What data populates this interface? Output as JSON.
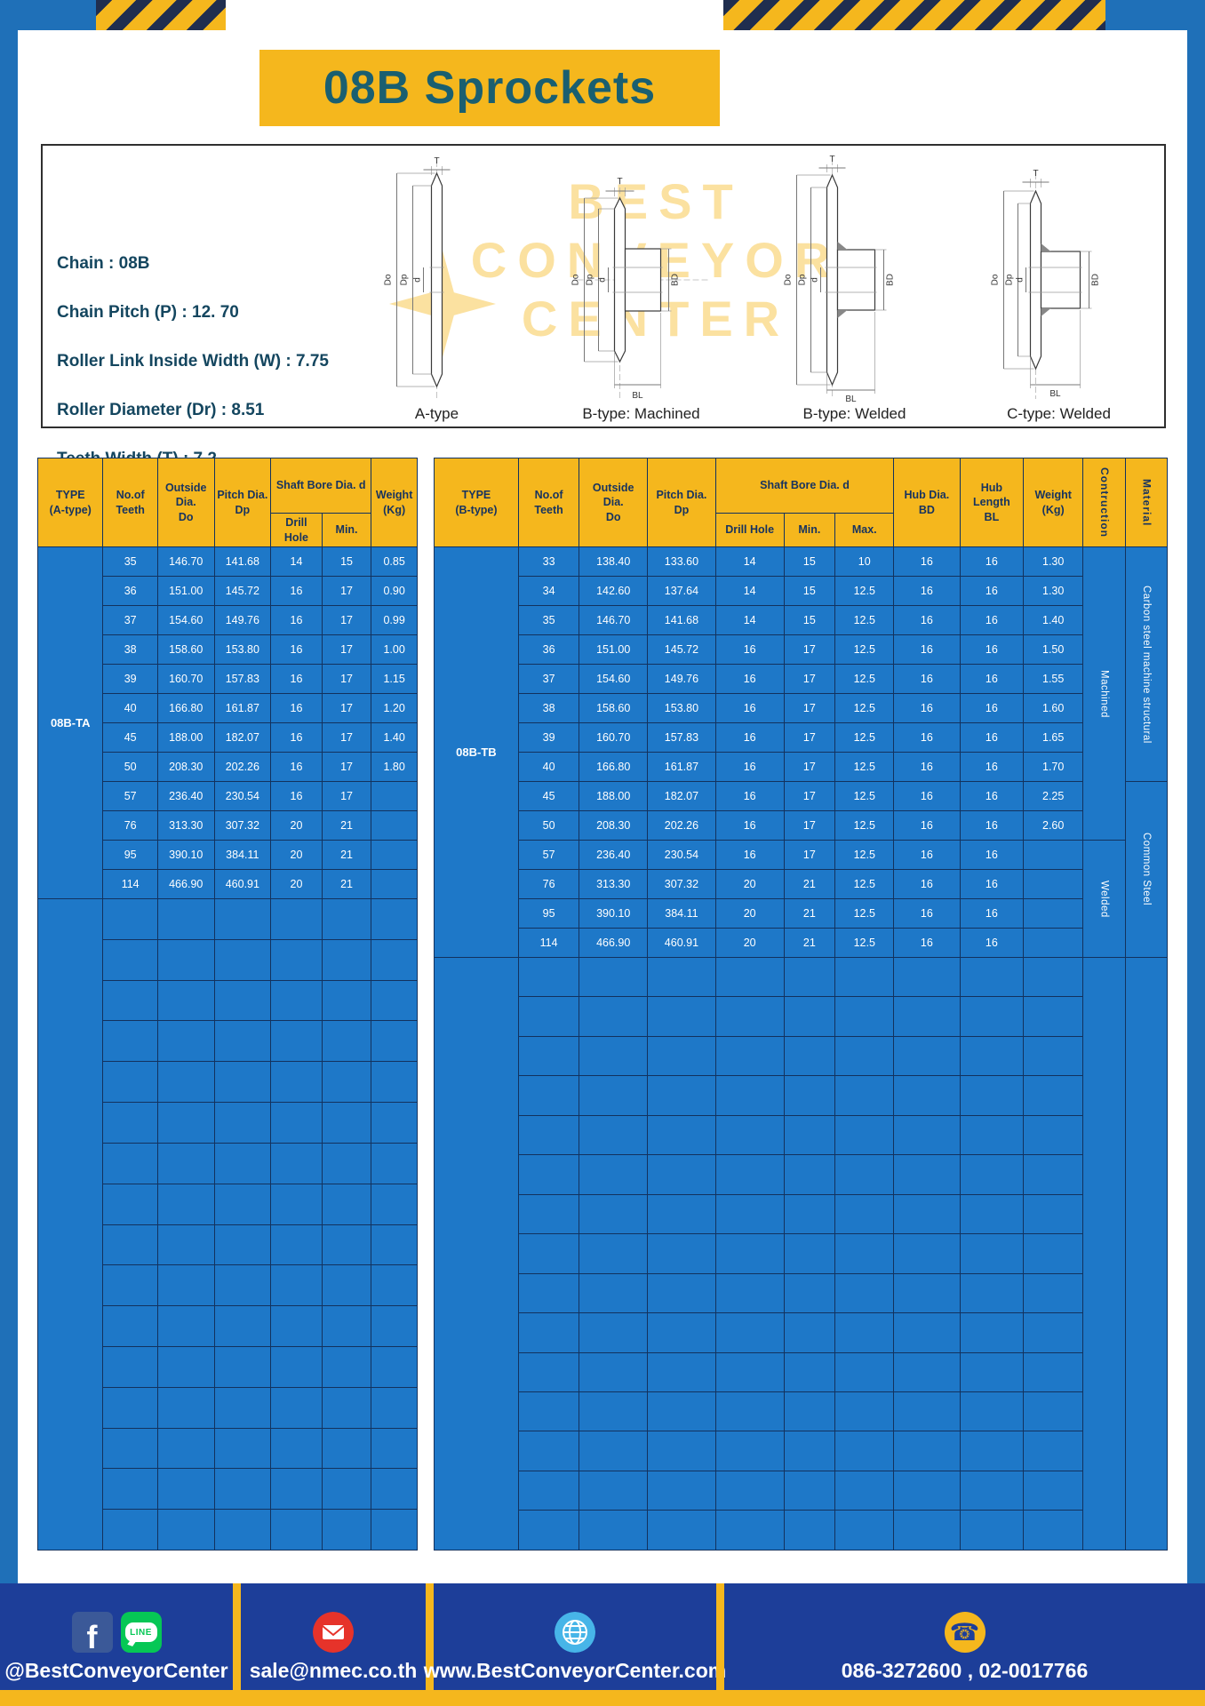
{
  "title": "08B Sprockets",
  "colors": {
    "frame_blue": "#1f70b8",
    "cell_blue": "#1e78c8",
    "accent_yellow": "#f5b71d",
    "footer_blue": "#1d3e99",
    "title_teal": "#1a5f70"
  },
  "specs": {
    "lines": [
      "Chain : 08B",
      "Chain Pitch (P) : 12. 70",
      "Roller Link Inside Width (W) : 7.75",
      "Roller Diameter (Dr) : 8.51",
      "Teeth Width (T) : 7.2"
    ]
  },
  "drawings": {
    "dims": {
      "T": "T",
      "Do": "Do",
      "Dp": "Dp",
      "d": "d",
      "BD": "BD",
      "BL": "BL"
    },
    "captions": [
      "A-type",
      "B-type: Machined",
      "B-type: Welded",
      "C-type: Welded"
    ],
    "watermark": [
      "BEST",
      "CONVEYOR",
      "CENTER"
    ]
  },
  "table_a": {
    "headers": {
      "type": "TYPE\n(A-type)",
      "teeth": "No.of\nTeeth",
      "outside": "Outside\nDia.\nDo",
      "pitch": "Pitch Dia.\nDp",
      "shaft_bore": "Shaft Bore Dia. d",
      "drill": "Drill Hole",
      "min": "Min.",
      "weight": "Weight\n(Kg)"
    },
    "type_value": "08B-TA",
    "rows": [
      [
        "35",
        "146.70",
        "141.68",
        "14",
        "15",
        "0.85"
      ],
      [
        "36",
        "151.00",
        "145.72",
        "16",
        "17",
        "0.90"
      ],
      [
        "37",
        "154.60",
        "149.76",
        "16",
        "17",
        "0.99"
      ],
      [
        "38",
        "158.60",
        "153.80",
        "16",
        "17",
        "1.00"
      ],
      [
        "39",
        "160.70",
        "157.83",
        "16",
        "17",
        "1.15"
      ],
      [
        "40",
        "166.80",
        "161.87",
        "16",
        "17",
        "1.20"
      ],
      [
        "45",
        "188.00",
        "182.07",
        "16",
        "17",
        "1.40"
      ],
      [
        "50",
        "208.30",
        "202.26",
        "16",
        "17",
        "1.80"
      ],
      [
        "57",
        "236.40",
        "230.54",
        "16",
        "17",
        ""
      ],
      [
        "76",
        "313.30",
        "307.32",
        "20",
        "21",
        ""
      ],
      [
        "95",
        "390.10",
        "384.11",
        "20",
        "21",
        ""
      ],
      [
        "114",
        "466.90",
        "460.91",
        "20",
        "21",
        ""
      ]
    ]
  },
  "table_b": {
    "headers": {
      "type": "TYPE\n(B-type)",
      "teeth": "No.of\nTeeth",
      "outside": "Outside\nDia.\nDo",
      "pitch": "Pitch Dia.\nDp",
      "shaft_bore": "Shaft Bore Dia. d",
      "drill": "Drill Hole",
      "min": "Min.",
      "max": "Max.",
      "hub_dia": "Hub Dia.\nBD",
      "hub_len": "Hub\nLength\nBL",
      "weight": "Weight\n(Kg)",
      "construction": "Contruction",
      "material": "Material"
    },
    "type_value": "08B-TB",
    "rows": [
      [
        "33",
        "138.40",
        "133.60",
        "14",
        "15",
        "10",
        "16",
        "16",
        "1.30"
      ],
      [
        "34",
        "142.60",
        "137.64",
        "14",
        "15",
        "12.5",
        "16",
        "16",
        "1.30"
      ],
      [
        "35",
        "146.70",
        "141.68",
        "14",
        "15",
        "12.5",
        "16",
        "16",
        "1.40"
      ],
      [
        "36",
        "151.00",
        "145.72",
        "16",
        "17",
        "12.5",
        "16",
        "16",
        "1.50"
      ],
      [
        "37",
        "154.60",
        "149.76",
        "16",
        "17",
        "12.5",
        "16",
        "16",
        "1.55"
      ],
      [
        "38",
        "158.60",
        "153.80",
        "16",
        "17",
        "12.5",
        "16",
        "16",
        "1.60"
      ],
      [
        "39",
        "160.70",
        "157.83",
        "16",
        "17",
        "12.5",
        "16",
        "16",
        "1.65"
      ],
      [
        "40",
        "166.80",
        "161.87",
        "16",
        "17",
        "12.5",
        "16",
        "16",
        "1.70"
      ],
      [
        "45",
        "188.00",
        "182.07",
        "16",
        "17",
        "12.5",
        "16",
        "16",
        "2.25"
      ],
      [
        "50",
        "208.30",
        "202.26",
        "16",
        "17",
        "12.5",
        "16",
        "16",
        "2.60"
      ],
      [
        "57",
        "236.40",
        "230.54",
        "16",
        "17",
        "12.5",
        "16",
        "16",
        ""
      ],
      [
        "76",
        "313.30",
        "307.32",
        "20",
        "21",
        "12.5",
        "16",
        "16",
        ""
      ],
      [
        "95",
        "390.10",
        "384.11",
        "20",
        "21",
        "12.5",
        "16",
        "16",
        ""
      ],
      [
        "114",
        "466.90",
        "460.91",
        "20",
        "21",
        "12.5",
        "16",
        "16",
        ""
      ]
    ],
    "construction": [
      {
        "label": "Machined",
        "span": 10
      },
      {
        "label": "Welded",
        "span": 4
      }
    ],
    "material": [
      {
        "label": "Carbon steel machine structural",
        "span": 8
      },
      {
        "label": "Common Steel",
        "span": 6
      }
    ]
  },
  "footer": {
    "facebook_f": "f",
    "line_label": "LINE",
    "facebook": "@BestConveyorCenter",
    "email": "sale@nmec.co.th",
    "website": "www.BestConveyorCenter.com",
    "phone": "086-3272600 , 02-0017766"
  }
}
